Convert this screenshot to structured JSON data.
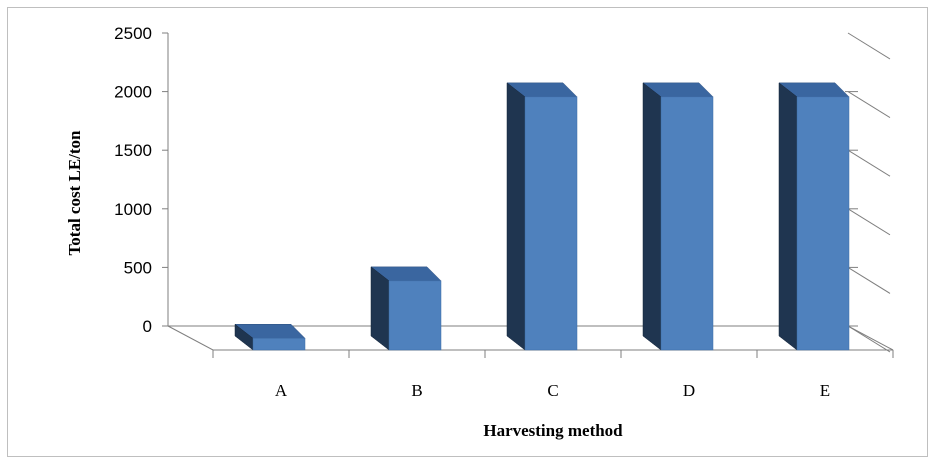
{
  "chart_data": {
    "type": "bar",
    "style": "3d-column",
    "categories": [
      "A",
      "B",
      "C",
      "D",
      "E"
    ],
    "values": [
      100,
      590,
      2160,
      2160,
      2160
    ],
    "xlabel": "Harvesting method",
    "ylabel": "Total cost LE/ton",
    "ylim": [
      0,
      2500
    ],
    "yticks": [
      0,
      500,
      1000,
      1500,
      2000,
      2500
    ],
    "grid": false,
    "legend": "none",
    "colors": {
      "bar_front": "#4f81bd",
      "bar_side": "#1f3550",
      "bar_top": "#3a66a0",
      "axis": "#7f7f7f"
    }
  }
}
